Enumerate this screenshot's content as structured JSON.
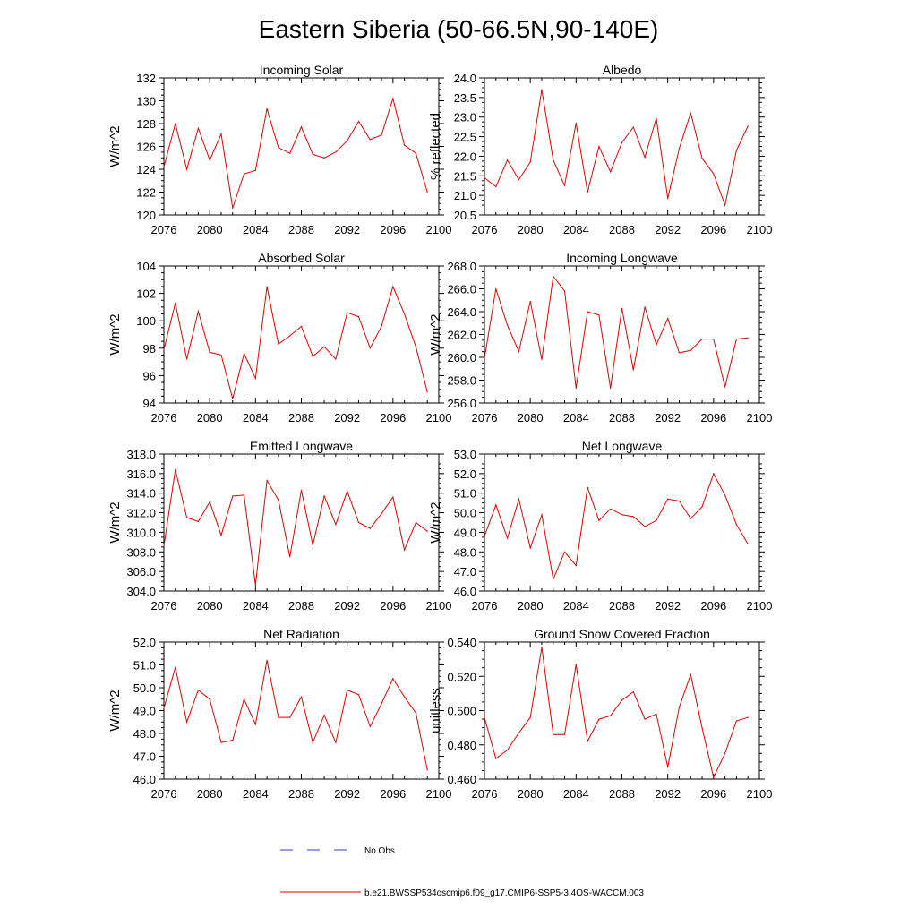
{
  "title": "Eastern Siberia (50-66.5N,90-140E)",
  "legend": [
    {
      "label": "No Obs",
      "color": "#3a3ad0",
      "dash": "dashed"
    },
    {
      "label": "b.e21.BWSSP534oscmip6.f09_g17.CMIP6-SSP5-3.4OS-WACCM.003",
      "color": "#e00000",
      "dash": "solid"
    }
  ],
  "chart_data": [
    {
      "type": "line",
      "title": "Incoming Solar",
      "ylabel": "W/m^2",
      "xlim": [
        2076,
        2100
      ],
      "xticks": [
        2076,
        2080,
        2084,
        2088,
        2092,
        2096,
        2100
      ],
      "ylim": [
        120,
        132
      ],
      "yticks": [
        120,
        122,
        124,
        126,
        128,
        130,
        132
      ],
      "ytick_labels": [
        "120",
        "122",
        "124",
        "126",
        "128",
        "130",
        "132"
      ],
      "series": [
        {
          "name": "b.e21.BWSSP534oscmip6.f09_g17.CMIP6-SSP5-3.4OS-WACCM.003",
          "color": "#e00000",
          "x": [
            2076,
            2077,
            2078,
            2079,
            2080,
            2081,
            2082,
            2083,
            2084,
            2085,
            2086,
            2087,
            2088,
            2089,
            2090,
            2091,
            2092,
            2093,
            2094,
            2095,
            2096,
            2097,
            2098,
            2099
          ],
          "values": [
            124.2,
            128.0,
            124.0,
            127.6,
            124.8,
            127.1,
            120.6,
            123.6,
            123.9,
            129.3,
            125.9,
            125.4,
            127.7,
            125.3,
            125.0,
            125.5,
            126.5,
            128.2,
            126.6,
            127.0,
            130.2,
            126.1,
            125.4,
            122.0
          ]
        }
      ]
    },
    {
      "type": "line",
      "title": "Albedo",
      "ylabel": "% reflected",
      "xlim": [
        2076,
        2100
      ],
      "xticks": [
        2076,
        2080,
        2084,
        2088,
        2092,
        2096,
        2100
      ],
      "ylim": [
        20.5,
        24.0
      ],
      "yticks": [
        20.5,
        21.0,
        21.5,
        22.0,
        22.5,
        23.0,
        23.5,
        24.0
      ],
      "ytick_labels": [
        "20.5",
        "21.0",
        "21.5",
        "22.0",
        "22.5",
        "23.0",
        "23.5",
        "24.0"
      ],
      "series": [
        {
          "name": "b.e21.BWSSP534oscmip6.f09_g17.CMIP6-SSP5-3.4OS-WACCM.003",
          "color": "#e00000",
          "x": [
            2076,
            2077,
            2078,
            2079,
            2080,
            2081,
            2082,
            2083,
            2084,
            2085,
            2086,
            2087,
            2088,
            2089,
            2090,
            2091,
            2092,
            2093,
            2094,
            2095,
            2096,
            2097,
            2098,
            2099
          ],
          "values": [
            21.45,
            21.22,
            21.9,
            21.4,
            21.85,
            23.7,
            21.9,
            21.25,
            22.85,
            21.08,
            22.25,
            21.6,
            22.35,
            22.74,
            21.97,
            22.97,
            20.92,
            22.2,
            23.1,
            21.95,
            21.55,
            20.75,
            22.15,
            22.77
          ]
        }
      ]
    },
    {
      "type": "line",
      "title": "Absorbed Solar",
      "ylabel": "W/m^2",
      "xlim": [
        2076,
        2100
      ],
      "xticks": [
        2076,
        2080,
        2084,
        2088,
        2092,
        2096,
        2100
      ],
      "ylim": [
        94,
        104
      ],
      "yticks": [
        94,
        96,
        98,
        100,
        102,
        104
      ],
      "ytick_labels": [
        "94",
        "96",
        "98",
        "100",
        "102",
        "104"
      ],
      "series": [
        {
          "name": "b.e21.BWSSP534oscmip6.f09_g17.CMIP6-SSP5-3.4OS-WACCM.003",
          "color": "#e00000",
          "x": [
            2076,
            2077,
            2078,
            2079,
            2080,
            2081,
            2082,
            2083,
            2084,
            2085,
            2086,
            2087,
            2088,
            2089,
            2090,
            2091,
            2092,
            2093,
            2094,
            2095,
            2096,
            2097,
            2098,
            2099
          ],
          "values": [
            97.9,
            101.3,
            97.2,
            100.7,
            97.7,
            97.5,
            94.3,
            97.6,
            95.8,
            102.5,
            98.3,
            98.9,
            99.6,
            97.4,
            98.1,
            97.2,
            100.6,
            100.3,
            98.0,
            99.6,
            102.5,
            100.5,
            98.1,
            94.8
          ]
        }
      ]
    },
    {
      "type": "line",
      "title": "Incoming Longwave",
      "ylabel": "W/m^2",
      "xlim": [
        2076,
        2100
      ],
      "xticks": [
        2076,
        2080,
        2084,
        2088,
        2092,
        2096,
        2100
      ],
      "ylim": [
        256,
        268
      ],
      "yticks": [
        256,
        258,
        260,
        262,
        264,
        266,
        268
      ],
      "ytick_labels": [
        "256.0",
        "258.0",
        "260.0",
        "262.0",
        "264.0",
        "266.0",
        "268.0"
      ],
      "series": [
        {
          "name": "b.e21.BWSSP534oscmip6.f09_g17.CMIP6-SSP5-3.4OS-WACCM.003",
          "color": "#e00000",
          "x": [
            2076,
            2077,
            2078,
            2079,
            2080,
            2081,
            2082,
            2083,
            2084,
            2085,
            2086,
            2087,
            2088,
            2089,
            2090,
            2091,
            2092,
            2093,
            2094,
            2095,
            2096,
            2097,
            2098,
            2099
          ],
          "values": [
            259.9,
            266.0,
            262.8,
            260.5,
            264.9,
            259.8,
            267.1,
            265.8,
            257.3,
            264.0,
            263.7,
            257.3,
            264.3,
            258.9,
            264.4,
            261.1,
            263.4,
            260.4,
            260.6,
            261.6,
            261.6,
            257.4,
            261.6,
            261.7
          ]
        }
      ]
    },
    {
      "type": "line",
      "title": "Emitted Longwave",
      "ylabel": "W/m^2",
      "xlim": [
        2076,
        2100
      ],
      "xticks": [
        2076,
        2080,
        2084,
        2088,
        2092,
        2096,
        2100
      ],
      "ylim": [
        304,
        318
      ],
      "yticks": [
        304,
        306,
        308,
        310,
        312,
        314,
        316,
        318
      ],
      "ytick_labels": [
        "304.0",
        "306.0",
        "308.0",
        "310.0",
        "312.0",
        "314.0",
        "316.0",
        "318.0"
      ],
      "series": [
        {
          "name": "b.e21.BWSSP534oscmip6.f09_g17.CMIP6-SSP5-3.4OS-WACCM.003",
          "color": "#e00000",
          "x": [
            2076,
            2077,
            2078,
            2079,
            2080,
            2081,
            2082,
            2083,
            2084,
            2085,
            2086,
            2087,
            2088,
            2089,
            2090,
            2091,
            2092,
            2093,
            2094,
            2095,
            2096,
            2097,
            2098,
            2099
          ],
          "values": [
            308.6,
            316.4,
            311.5,
            311.1,
            313.1,
            309.7,
            313.7,
            313.8,
            304.6,
            315.3,
            313.3,
            307.5,
            314.3,
            308.7,
            313.7,
            310.8,
            314.2,
            311.0,
            310.4,
            311.9,
            313.6,
            308.2,
            311.0,
            310.1
          ]
        }
      ]
    },
    {
      "type": "line",
      "title": "Net Longwave",
      "ylabel": "W/m^2",
      "xlim": [
        2076,
        2100
      ],
      "xticks": [
        2076,
        2080,
        2084,
        2088,
        2092,
        2096,
        2100
      ],
      "ylim": [
        46,
        53
      ],
      "yticks": [
        46,
        47,
        48,
        49,
        50,
        51,
        52,
        53
      ],
      "ytick_labels": [
        "46.0",
        "47.0",
        "48.0",
        "49.0",
        "50.0",
        "51.0",
        "52.0",
        "53.0"
      ],
      "series": [
        {
          "name": "b.e21.BWSSP534oscmip6.f09_g17.CMIP6-SSP5-3.4OS-WACCM.003",
          "color": "#e00000",
          "x": [
            2076,
            2077,
            2078,
            2079,
            2080,
            2081,
            2082,
            2083,
            2084,
            2085,
            2086,
            2087,
            2088,
            2089,
            2090,
            2091,
            2092,
            2093,
            2094,
            2095,
            2096,
            2097,
            2098,
            2099
          ],
          "values": [
            48.8,
            50.4,
            48.7,
            50.7,
            48.2,
            49.9,
            46.6,
            48.0,
            47.3,
            51.3,
            49.6,
            50.2,
            49.9,
            49.8,
            49.3,
            49.6,
            50.7,
            50.6,
            49.7,
            50.3,
            52.0,
            50.9,
            49.4,
            48.4
          ]
        }
      ]
    },
    {
      "type": "line",
      "title": "Net Radiation",
      "ylabel": "W/m^2",
      "xlim": [
        2076,
        2100
      ],
      "xticks": [
        2076,
        2080,
        2084,
        2088,
        2092,
        2096,
        2100
      ],
      "ylim": [
        46,
        52
      ],
      "yticks": [
        46,
        47,
        48,
        49,
        50,
        51,
        52
      ],
      "ytick_labels": [
        "46.0",
        "47.0",
        "48.0",
        "49.0",
        "50.0",
        "51.0",
        "52.0"
      ],
      "series": [
        {
          "name": "b.e21.BWSSP534oscmip6.f09_g17.CMIP6-SSP5-3.4OS-WACCM.003",
          "color": "#e00000",
          "x": [
            2076,
            2077,
            2078,
            2079,
            2080,
            2081,
            2082,
            2083,
            2084,
            2085,
            2086,
            2087,
            2088,
            2089,
            2090,
            2091,
            2092,
            2093,
            2094,
            2095,
            2096,
            2097,
            2098,
            2099
          ],
          "values": [
            49.1,
            50.9,
            48.5,
            49.9,
            49.5,
            47.6,
            47.7,
            49.5,
            48.4,
            51.2,
            48.7,
            48.7,
            49.6,
            47.6,
            48.8,
            47.6,
            49.9,
            49.7,
            48.3,
            49.3,
            50.4,
            49.6,
            48.9,
            46.4
          ]
        }
      ]
    },
    {
      "type": "line",
      "title": "Ground Snow Covered Fraction",
      "ylabel": "unitless",
      "xlim": [
        2076,
        2100
      ],
      "xticks": [
        2076,
        2080,
        2084,
        2088,
        2092,
        2096,
        2100
      ],
      "ylim": [
        0.46,
        0.54
      ],
      "yticks": [
        0.46,
        0.48,
        0.5,
        0.52,
        0.54
      ],
      "ytick_labels": [
        "0.460",
        "0.480",
        "0.500",
        "0.520",
        "0.540"
      ],
      "series": [
        {
          "name": "b.e21.BWSSP534oscmip6.f09_g17.CMIP6-SSP5-3.4OS-WACCM.003",
          "color": "#e00000",
          "x": [
            2076,
            2077,
            2078,
            2079,
            2080,
            2081,
            2082,
            2083,
            2084,
            2085,
            2086,
            2087,
            2088,
            2089,
            2090,
            2091,
            2092,
            2093,
            2094,
            2095,
            2096,
            2097,
            2098,
            2099
          ],
          "values": [
            0.496,
            0.472,
            0.477,
            0.487,
            0.496,
            0.537,
            0.486,
            0.486,
            0.527,
            0.482,
            0.495,
            0.497,
            0.506,
            0.511,
            0.495,
            0.498,
            0.467,
            0.502,
            0.521,
            0.49,
            0.461,
            0.475,
            0.494,
            0.496
          ]
        }
      ]
    }
  ]
}
